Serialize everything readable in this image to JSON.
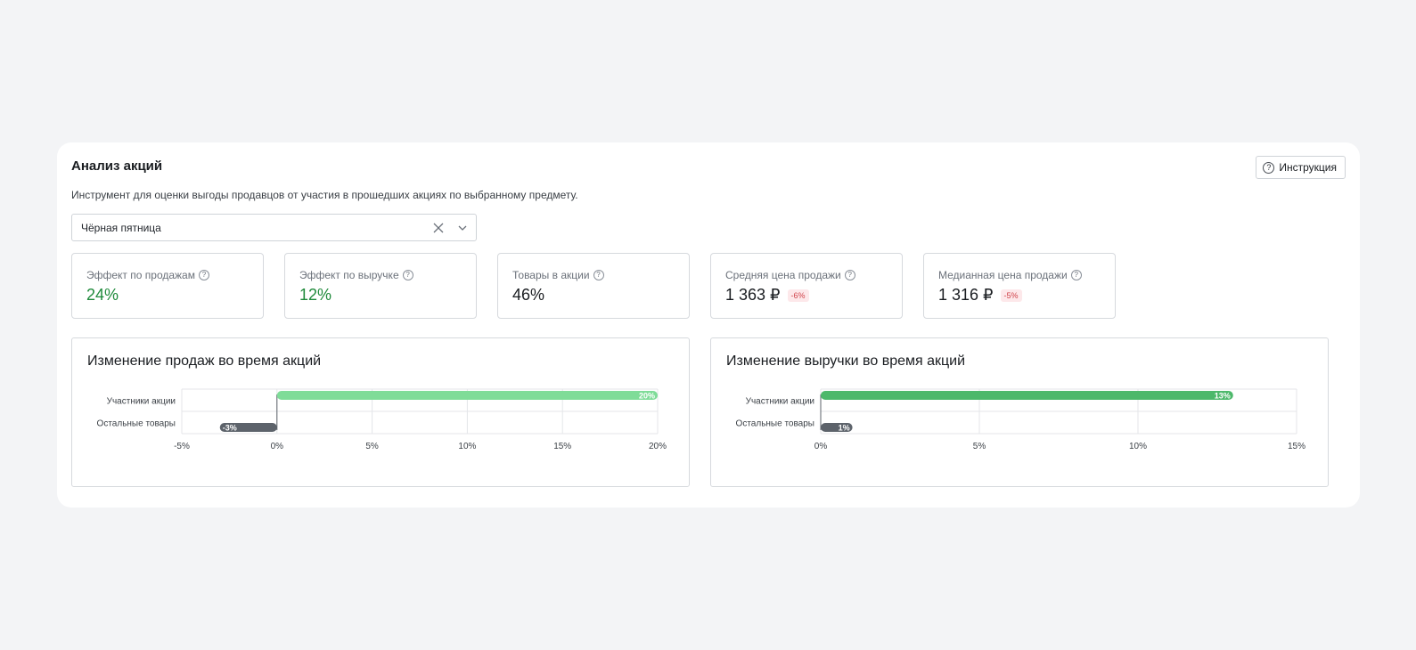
{
  "header": {
    "title": "Анализ акций",
    "help_label": "Инструкция",
    "subtitle": "Инструмент для оценки выгоды продавцов от участия в прошедших акциях по выбранному предмету."
  },
  "promo_select": {
    "value": "Чёрная пятница"
  },
  "kpis": [
    {
      "label": "Эффект по продажам",
      "value": "24%",
      "badge": "",
      "color": "#1f8a3b"
    },
    {
      "label": "Эффект по выручке",
      "value": "12%",
      "badge": "",
      "color": "#1f8a3b"
    },
    {
      "label": "Товары в акции",
      "value": "46%",
      "badge": "",
      "color": "#1a1d21"
    },
    {
      "label": "Средняя цена продажи",
      "value": "1 363 ₽",
      "badge": "-6%",
      "color": "#1a1d21"
    },
    {
      "label": "Медианная цена продажи",
      "value": "1 316 ₽",
      "badge": "-5%",
      "color": "#1a1d21"
    }
  ],
  "chart_data": [
    {
      "type": "bar",
      "orientation": "horizontal",
      "title": "Изменение продаж во время акций",
      "categories": [
        "Участники акции",
        "Остальные товары"
      ],
      "values": [
        20,
        -3
      ],
      "data_labels": [
        "20%",
        "-3%"
      ],
      "colors": [
        "#7fdc98",
        "#5d636b"
      ],
      "xlim": [
        -5,
        20
      ],
      "xticks": [
        -5,
        0,
        5,
        10,
        15,
        20
      ],
      "xtick_labels": [
        "-5%",
        "0%",
        "5%",
        "10%",
        "15%",
        "20%"
      ],
      "grid": true
    },
    {
      "type": "bar",
      "orientation": "horizontal",
      "title": "Изменение выручки во время акций",
      "categories": [
        "Участники акции",
        "Остальные товары"
      ],
      "values": [
        13,
        1
      ],
      "data_labels": [
        "13%",
        "1%"
      ],
      "colors": [
        "#4cb86a",
        "#5d636b"
      ],
      "xlim": [
        0,
        15
      ],
      "xticks": [
        0,
        5,
        10,
        15
      ],
      "xtick_labels": [
        "0%",
        "5%",
        "10%",
        "15%"
      ],
      "grid": true
    }
  ]
}
